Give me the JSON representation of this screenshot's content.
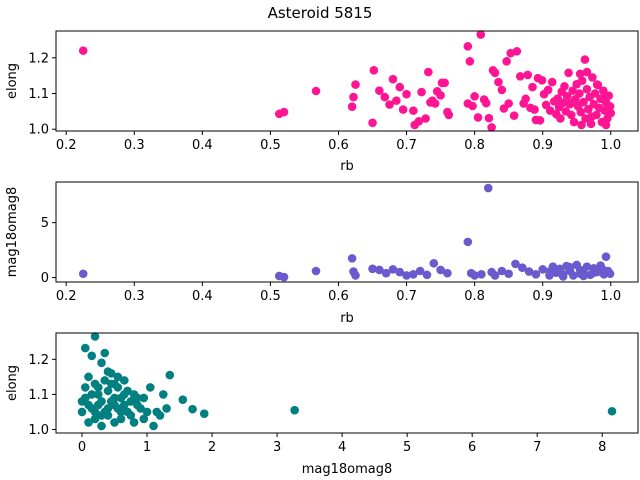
{
  "title": "Asteroid 5815",
  "chart_data": [
    {
      "type": "scatter",
      "xlabel": "rb",
      "ylabel": "elong",
      "xlim": [
        0.185,
        1.04
      ],
      "ylim": [
        0.995,
        1.275
      ],
      "xticks": [
        0.2,
        0.3,
        0.4,
        0.5,
        0.6,
        0.7,
        0.8,
        0.9,
        1.0
      ],
      "yticks": [
        1.0,
        1.1,
        1.2
      ],
      "xtick_labels": [
        "0.2",
        "0.3",
        "0.4",
        "0.5",
        "0.6",
        "0.7",
        "0.8",
        "0.9",
        "1.0"
      ],
      "ytick_labels": [
        "1.0",
        "1.1",
        "1.2"
      ],
      "color": "#ff1493",
      "grid": false,
      "points": [
        [
          0.225,
          1.22
        ],
        [
          0.513,
          1.043
        ],
        [
          0.52,
          1.048
        ],
        [
          0.567,
          1.107
        ],
        [
          0.62,
          1.063
        ],
        [
          0.622,
          1.09
        ],
        [
          0.625,
          1.125
        ],
        [
          0.65,
          1.018
        ],
        [
          0.652,
          1.165
        ],
        [
          0.66,
          1.108
        ],
        [
          0.668,
          1.09
        ],
        [
          0.675,
          1.069
        ],
        [
          0.68,
          1.14
        ],
        [
          0.685,
          1.08
        ],
        [
          0.69,
          1.118
        ],
        [
          0.695,
          1.055
        ],
        [
          0.7,
          1.098
        ],
        [
          0.71,
          1.052
        ],
        [
          0.712,
          1.012
        ],
        [
          0.718,
          1.022
        ],
        [
          0.722,
          1.104
        ],
        [
          0.728,
          1.03
        ],
        [
          0.732,
          1.16
        ],
        [
          0.735,
          1.075
        ],
        [
          0.738,
          1.08
        ],
        [
          0.742,
          1.072
        ],
        [
          0.745,
          1.106
        ],
        [
          0.75,
          1.095
        ],
        [
          0.752,
          1.13
        ],
        [
          0.756,
          1.13
        ],
        [
          0.76,
          1.048
        ],
        [
          0.762,
          1.04
        ],
        [
          0.79,
          1.072
        ],
        [
          0.79,
          1.232
        ],
        [
          0.793,
          1.19
        ],
        [
          0.797,
          1.065
        ],
        [
          0.8,
          1.092
        ],
        [
          0.805,
          1.033
        ],
        [
          0.809,
          1.265
        ],
        [
          0.814,
          1.083
        ],
        [
          0.817,
          1.073
        ],
        [
          0.821,
          1.031
        ],
        [
          0.825,
          1.005
        ],
        [
          0.827,
          1.165
        ],
        [
          0.83,
          1.158
        ],
        [
          0.835,
          1.132
        ],
        [
          0.84,
          1.11
        ],
        [
          0.843,
          1.058
        ],
        [
          0.847,
          1.19
        ],
        [
          0.85,
          1.072
        ],
        [
          0.853,
          1.213
        ],
        [
          0.858,
          1.038
        ],
        [
          0.862,
          1.218
        ],
        [
          0.867,
          1.148
        ],
        [
          0.872,
          1.072
        ],
        [
          0.875,
          1.085
        ],
        [
          0.878,
          1.152
        ],
        [
          0.882,
          1.06
        ],
        [
          0.885,
          1.118
        ],
        [
          0.888,
          1.055
        ],
        [
          0.89,
          1.026
        ],
        [
          0.893,
          1.143
        ],
        [
          0.896,
          1.025
        ],
        [
          0.899,
          1.137
        ],
        [
          0.902,
          1.098
        ],
        [
          0.905,
          1.068
        ],
        [
          0.908,
          1.11
        ],
        [
          0.911,
          1.052
        ],
        [
          0.914,
          1.132
        ],
        [
          0.917,
          1.078
        ],
        [
          0.92,
          1.042
        ],
        [
          0.922,
          1.086
        ],
        [
          0.924,
          1.062
        ],
        [
          0.926,
          1.03
        ],
        [
          0.928,
          1.105
        ],
        [
          0.93,
          1.074
        ],
        [
          0.932,
          1.12
        ],
        [
          0.934,
          1.05
        ],
        [
          0.936,
          1.092
        ],
        [
          0.938,
          1.158
        ],
        [
          0.94,
          1.07
        ],
        [
          0.942,
          1.04
        ],
        [
          0.944,
          1.108
        ],
        [
          0.946,
          1.02
        ],
        [
          0.948,
          1.084
        ],
        [
          0.95,
          1.126
        ],
        [
          0.952,
          1.064
        ],
        [
          0.954,
          1.1
        ],
        [
          0.956,
          1.048
        ],
        [
          0.958,
          1.136
        ],
        [
          0.96,
          1.076
        ],
        [
          0.962,
          1.195
        ],
        [
          0.963,
          1.03
        ],
        [
          0.965,
          1.112
        ],
        [
          0.967,
          1.056
        ],
        [
          0.969,
          1.09
        ],
        [
          0.971,
          1.015
        ],
        [
          0.973,
          1.145
        ],
        [
          0.975,
          1.07
        ],
        [
          0.977,
          1.1
        ],
        [
          0.979,
          1.04
        ],
        [
          0.981,
          1.124
        ],
        [
          0.983,
          1.06
        ],
        [
          0.985,
          1.085
        ],
        [
          0.987,
          1.02
        ],
        [
          0.989,
          1.108
        ],
        [
          0.991,
          1.052
        ],
        [
          0.993,
          1.075
        ],
        [
          0.995,
          1.03
        ],
        [
          0.997,
          1.094
        ],
        [
          0.999,
          1.064
        ],
        [
          1.0,
          1.045
        ],
        [
          0.955,
          1.155
        ],
        [
          0.965,
          1.16
        ],
        [
          0.98,
          1.125
        ],
        [
          0.99,
          1.09
        ],
        [
          0.945,
          1.075
        ],
        [
          0.972,
          1.035
        ],
        [
          0.957,
          1.012
        ],
        [
          0.993,
          1.012
        ]
      ]
    },
    {
      "type": "scatter",
      "xlabel": "rb",
      "ylabel": "mag18omag8",
      "xlim": [
        0.185,
        1.04
      ],
      "ylim": [
        -0.4,
        8.7
      ],
      "xticks": [
        0.2,
        0.3,
        0.4,
        0.5,
        0.6,
        0.7,
        0.8,
        0.9,
        1.0
      ],
      "yticks": [
        0,
        5
      ],
      "xtick_labels": [
        "0.2",
        "0.3",
        "0.4",
        "0.5",
        "0.6",
        "0.7",
        "0.8",
        "0.9",
        "1.0"
      ],
      "ytick_labels": [
        "0",
        "5"
      ],
      "color": "#6a5acd",
      "grid": false,
      "points": [
        [
          0.225,
          0.35
        ],
        [
          0.513,
          0.15
        ],
        [
          0.52,
          0.05
        ],
        [
          0.567,
          0.6
        ],
        [
          0.62,
          1.75
        ],
        [
          0.622,
          0.55
        ],
        [
          0.625,
          0.2
        ],
        [
          0.65,
          0.8
        ],
        [
          0.66,
          0.7
        ],
        [
          0.67,
          0.4
        ],
        [
          0.68,
          0.75
        ],
        [
          0.69,
          0.5
        ],
        [
          0.7,
          0.2
        ],
        [
          0.71,
          0.3
        ],
        [
          0.72,
          0.6
        ],
        [
          0.73,
          0.25
        ],
        [
          0.74,
          1.3
        ],
        [
          0.75,
          0.7
        ],
        [
          0.76,
          0.4
        ],
        [
          0.79,
          3.25
        ],
        [
          0.795,
          0.4
        ],
        [
          0.8,
          0.2
        ],
        [
          0.81,
          0.3
        ],
        [
          0.82,
          8.15
        ],
        [
          0.825,
          0.5
        ],
        [
          0.83,
          0.2
        ],
        [
          0.84,
          0.6
        ],
        [
          0.85,
          0.35
        ],
        [
          0.86,
          1.25
        ],
        [
          0.87,
          0.9
        ],
        [
          0.88,
          0.55
        ],
        [
          0.89,
          0.3
        ],
        [
          0.9,
          0.75
        ],
        [
          0.91,
          0.2
        ],
        [
          0.915,
          1.0
        ],
        [
          0.92,
          0.45
        ],
        [
          0.925,
          0.8
        ],
        [
          0.93,
          0.3
        ],
        [
          0.935,
          1.05
        ],
        [
          0.94,
          0.6
        ],
        [
          0.945,
          0.2
        ],
        [
          0.95,
          1.15
        ],
        [
          0.955,
          0.7
        ],
        [
          0.96,
          0.4
        ],
        [
          0.965,
          1.0
        ],
        [
          0.97,
          0.25
        ],
        [
          0.975,
          0.85
        ],
        [
          0.98,
          0.5
        ],
        [
          0.985,
          1.1
        ],
        [
          0.99,
          0.3
        ],
        [
          0.993,
          1.9
        ],
        [
          0.996,
          0.6
        ],
        [
          0.999,
          0.35
        ],
        [
          0.91,
          0.55
        ],
        [
          0.94,
          0.95
        ],
        [
          0.96,
          0.15
        ],
        [
          0.975,
          0.45
        ],
        [
          0.988,
          0.75
        ],
        [
          0.93,
          0.1
        ],
        [
          0.955,
          0.35
        ]
      ]
    },
    {
      "type": "scatter",
      "xlabel": "mag18omag8",
      "ylabel": "elong",
      "xlim": [
        -0.4,
        8.55
      ],
      "ylim": [
        0.99,
        1.275
      ],
      "xticks": [
        0,
        1,
        2,
        3,
        4,
        5,
        6,
        7,
        8
      ],
      "yticks": [
        1.0,
        1.1,
        1.2
      ],
      "xtick_labels": [
        "0",
        "1",
        "2",
        "3",
        "4",
        "5",
        "6",
        "7",
        "8"
      ],
      "ytick_labels": [
        "1.0",
        "1.1",
        "1.2"
      ],
      "color": "#008080",
      "grid": false,
      "points": [
        [
          0.05,
          1.232
        ],
        [
          0.15,
          1.21
        ],
        [
          0.2,
          1.265
        ],
        [
          0.3,
          1.19
        ],
        [
          0.35,
          1.218
        ],
        [
          0.4,
          1.165
        ],
        [
          0.1,
          1.15
        ],
        [
          0.05,
          1.12
        ],
        [
          0.2,
          1.13
        ],
        [
          0.25,
          1.1
        ],
        [
          0.35,
          1.14
        ],
        [
          0.45,
          1.16
        ],
        [
          0.5,
          1.13
        ],
        [
          0.55,
          1.12
        ],
        [
          0.6,
          1.09
        ],
        [
          0.65,
          1.14
        ],
        [
          0.7,
          1.11
        ],
        [
          0.75,
          1.08
        ],
        [
          0.8,
          1.1
        ],
        [
          0.85,
          1.07
        ],
        [
          0.9,
          1.06
        ],
        [
          0.95,
          1.09
        ],
        [
          1.0,
          1.05
        ],
        [
          1.05,
          1.12
        ],
        [
          1.15,
          1.05
        ],
        [
          1.2,
          1.04
        ],
        [
          1.3,
          1.06
        ],
        [
          1.35,
          1.155
        ],
        [
          1.55,
          1.085
        ],
        [
          1.7,
          1.058
        ],
        [
          1.88,
          1.045
        ],
        [
          3.27,
          1.055
        ],
        [
          8.15,
          1.052
        ],
        [
          0.1,
          1.02
        ],
        [
          0.2,
          1.03
        ],
        [
          0.3,
          1.01
        ],
        [
          0.4,
          1.04
        ],
        [
          0.5,
          1.02
        ],
        [
          0.6,
          1.03
        ],
        [
          0.7,
          1.05
        ],
        [
          0.8,
          1.02
        ],
        [
          1.1,
          1.01
        ],
        [
          0.15,
          1.06
        ],
        [
          0.25,
          1.07
        ],
        [
          0.35,
          1.05
        ],
        [
          0.45,
          1.08
        ],
        [
          0.55,
          1.06
        ],
        [
          0.65,
          1.07
        ],
        [
          0.05,
          1.09
        ],
        [
          0.15,
          1.1
        ],
        [
          0.3,
          1.08
        ],
        [
          0.4,
          1.11
        ],
        [
          0.5,
          1.07
        ],
        [
          0.6,
          1.05
        ],
        [
          0.75,
          1.04
        ],
        [
          0.85,
          1.09
        ],
        [
          0.95,
          1.03
        ],
        [
          0.1,
          1.07
        ],
        [
          0.2,
          1.05
        ],
        [
          0.3,
          1.04
        ],
        [
          0.4,
          1.06
        ],
        [
          0.5,
          1.09
        ],
        [
          0.65,
          1.1
        ],
        [
          0.25,
          1.12
        ],
        [
          0.45,
          1.13
        ],
        [
          0.55,
          1.15
        ],
        [
          1.25,
          1.1
        ],
        [
          0.0,
          1.05
        ],
        [
          0.0,
          1.08
        ]
      ]
    }
  ]
}
